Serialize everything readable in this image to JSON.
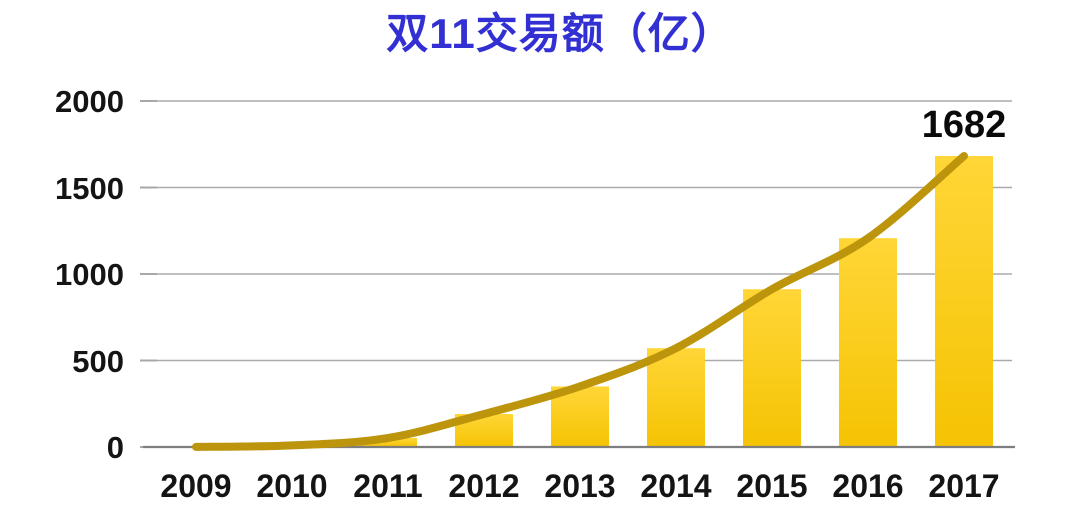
{
  "page": {
    "background": "#FFFFFF"
  },
  "chart_data": {
    "type": "bar",
    "title": "双11交易额（亿）",
    "title_color": "#3230D2",
    "categories": [
      "2009",
      "2010",
      "2011",
      "2012",
      "2013",
      "2014",
      "2015",
      "2016",
      "2017"
    ],
    "values": [
      0.52,
      9.36,
      52,
      191,
      350,
      571,
      912,
      1207,
      1682
    ],
    "ylim": [
      0,
      2000
    ],
    "yticks": [
      0,
      500,
      1000,
      1500,
      2000
    ],
    "grid": true,
    "legend": "none",
    "xlabel": "",
    "ylabel": "",
    "annotation": {
      "category": "2017",
      "label": "1682"
    },
    "trendline": {
      "type": "smooth",
      "color": "#BC950C",
      "width": 8
    },
    "colors": {
      "bar_gradient_top": "#FFD637",
      "bar_gradient_bottom": "#F5C303",
      "gridline": "#ABABAB",
      "axis_line": "#7E7E7E",
      "tick": "#A8A8A8",
      "label_text": "#141414",
      "annotation_text": "#0A0A0A"
    }
  }
}
